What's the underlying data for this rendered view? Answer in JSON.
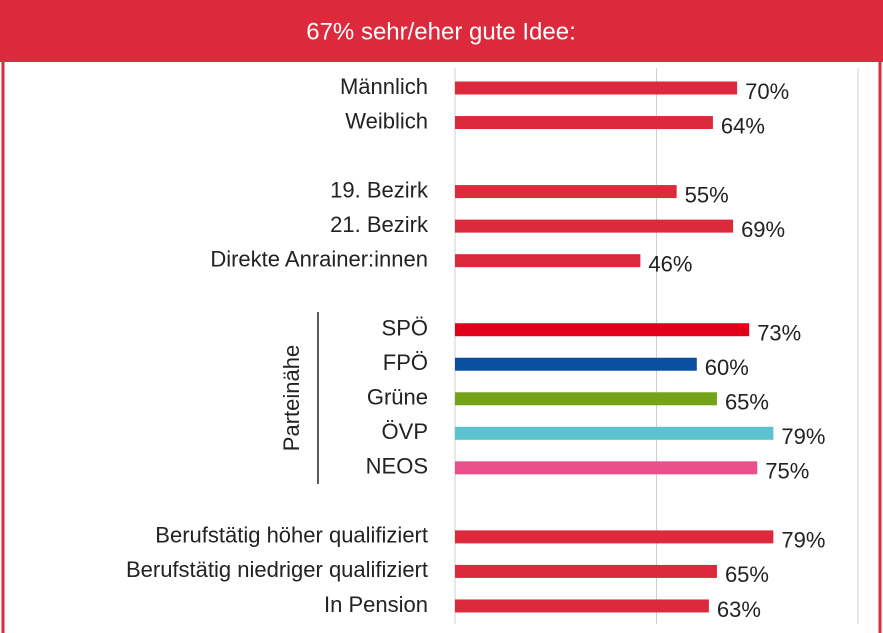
{
  "chart_data": {
    "type": "bar",
    "orientation": "horizontal",
    "title": "67% sehr/eher gute Idee:",
    "group_label": "Parteinähe",
    "categories": [
      "Männlich",
      "Weiblich",
      null,
      "19. Bezirk",
      "21. Bezirk",
      "Direkte Anrainer:innen",
      null,
      "SPÖ",
      "FPÖ",
      "Grüne",
      "ÖVP",
      "NEOS",
      null,
      "Berufstätig höher qualifiziert",
      "Berufstätig niedriger qualifiziert",
      "In Pension"
    ],
    "values": [
      70,
      64,
      null,
      55,
      69,
      46,
      null,
      73,
      60,
      65,
      79,
      75,
      null,
      79,
      65,
      63
    ],
    "value_labels": [
      "70%",
      "64%",
      null,
      "55%",
      "69%",
      "46%",
      null,
      "73%",
      "60%",
      "65%",
      "79%",
      "75%",
      null,
      "79%",
      "65%",
      "63%"
    ],
    "colors": [
      "#dc2a3c",
      "#dc2a3c",
      null,
      "#dc2a3c",
      "#dc2a3c",
      "#dc2a3c",
      null,
      "#e3001b",
      "#0b4fa0",
      "#74a31a",
      "#5bc3cf",
      "#e8508b",
      null,
      "#dc2a3c",
      "#dc2a3c",
      "#dc2a3c"
    ],
    "xlim": [
      0,
      100
    ],
    "xticks": [
      0,
      50,
      100
    ],
    "grid": true
  }
}
